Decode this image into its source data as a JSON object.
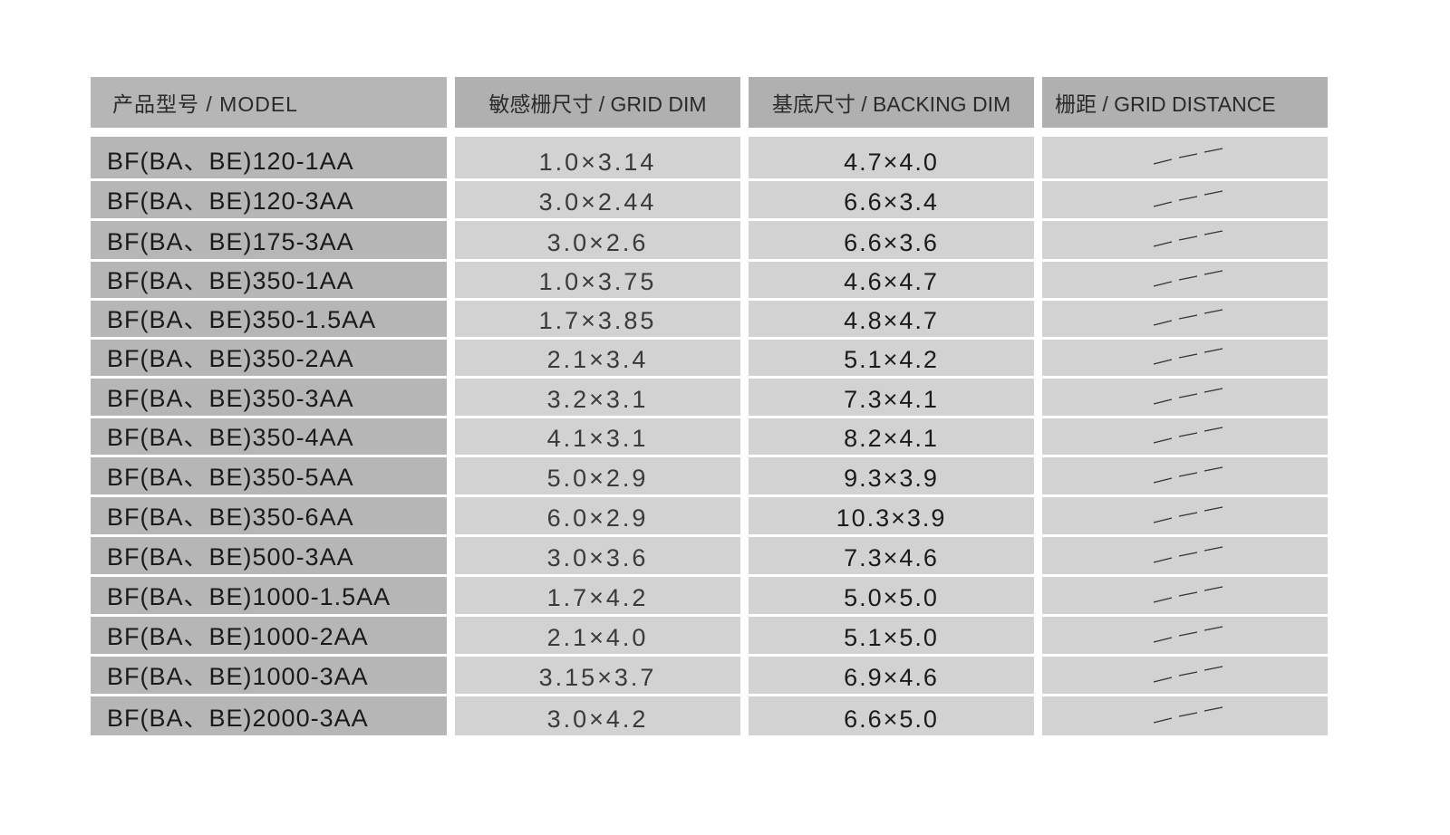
{
  "table": {
    "headers": [
      "产品型号 / MODEL",
      "敏感栅尺寸 / GRID DIM",
      "基底尺寸 / BACKING DIM",
      "栅距  /  GRID DISTANCE"
    ],
    "rows": [
      {
        "model": "BF(BA、BE)120-1AA",
        "grid_dim": "1.0×3.14",
        "backing_dim": "4.7×4.0",
        "grid_distance": "dash"
      },
      {
        "model": "BF(BA、BE)120-3AA",
        "grid_dim": "3.0×2.44",
        "backing_dim": "6.6×3.4",
        "grid_distance": "dash"
      },
      {
        "model": "BF(BA、BE)175-3AA",
        "grid_dim": "3.0×2.6",
        "backing_dim": "6.6×3.6",
        "grid_distance": "dash"
      },
      {
        "model": "BF(BA、BE)350-1AA",
        "grid_dim": "1.0×3.75",
        "backing_dim": "4.6×4.7",
        "grid_distance": "dash"
      },
      {
        "model": "BF(BA、BE)350-1.5AA",
        "grid_dim": "1.7×3.85",
        "backing_dim": "4.8×4.7",
        "grid_distance": "dash"
      },
      {
        "model": "BF(BA、BE)350-2AA",
        "grid_dim": "2.1×3.4",
        "backing_dim": "5.1×4.2",
        "grid_distance": "dash"
      },
      {
        "model": "BF(BA、BE)350-3AA",
        "grid_dim": "3.2×3.1",
        "backing_dim": "7.3×4.1",
        "grid_distance": "dash"
      },
      {
        "model": "BF(BA、BE)350-4AA",
        "grid_dim": "4.1×3.1",
        "backing_dim": "8.2×4.1",
        "grid_distance": "dash"
      },
      {
        "model": "BF(BA、BE)350-5AA",
        "grid_dim": "5.0×2.9",
        "backing_dim": "9.3×3.9",
        "grid_distance": "dash"
      },
      {
        "model": "BF(BA、BE)350-6AA",
        "grid_dim": "6.0×2.9",
        "backing_dim": "10.3×3.9",
        "grid_distance": "dash"
      },
      {
        "model": "BF(BA、BE)500-3AA",
        "grid_dim": "3.0×3.6",
        "backing_dim": "7.3×4.6",
        "grid_distance": "dash"
      },
      {
        "model": "BF(BA、BE)1000-1.5AA",
        "grid_dim": "1.7×4.2",
        "backing_dim": "5.0×5.0",
        "grid_distance": "dash"
      },
      {
        "model": "BF(BA、BE)1000-2AA",
        "grid_dim": "2.1×4.0",
        "backing_dim": "5.1×5.0",
        "grid_distance": "dash"
      },
      {
        "model": "BF(BA、BE)1000-3AA",
        "grid_dim": "3.15×3.7",
        "backing_dim": "6.9×4.6",
        "grid_distance": "dash"
      },
      {
        "model": "BF(BA、BE)2000-3AA",
        "grid_dim": "3.0×4.2",
        "backing_dim": "6.6×5.0",
        "grid_distance": "dash"
      }
    ]
  },
  "colors": {
    "header_bg": "#b0b0b0",
    "model_bg": "#b6b6b6",
    "cell_bg": "#d2d2d2"
  }
}
